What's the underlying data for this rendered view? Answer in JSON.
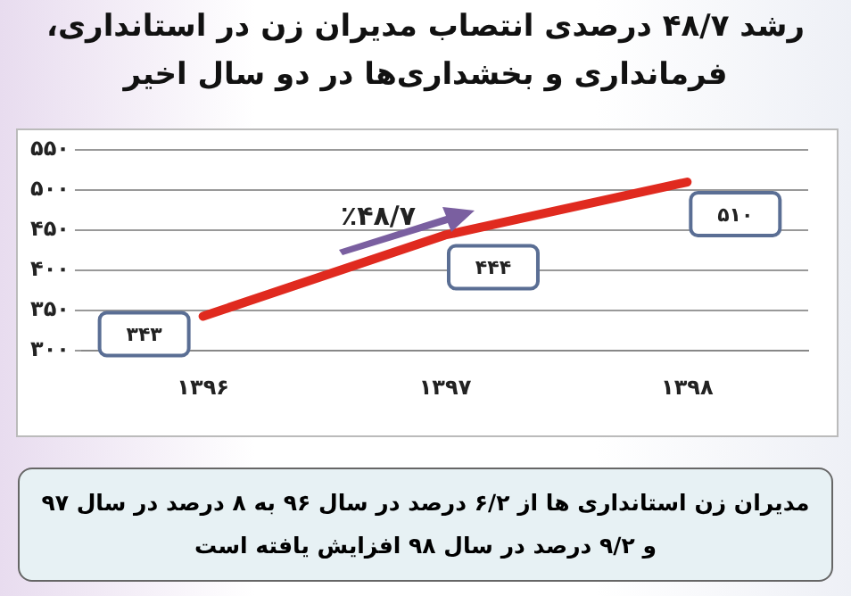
{
  "chart_data": {
    "type": "line",
    "title": "رشد ۴۸/۷ درصدی انتصاب مدیران زن در استانداری، فرمانداری و بخشداری‌ها در دو سال اخیر",
    "categories": [
      "۱۳۹۶",
      "۱۳۹۷",
      "۱۳۹۸"
    ],
    "series": [
      {
        "color": "#e02a1f",
        "values": [
          343,
          444,
          510
        ]
      }
    ],
    "value_labels": [
      "۳۴۳",
      "۴۴۴",
      "۵۱۰"
    ],
    "ylim": [
      300,
      550
    ],
    "yticks": [
      {
        "value": 300,
        "label": "۳۰۰"
      },
      {
        "value": 350,
        "label": "۳۵۰"
      },
      {
        "value": 400,
        "label": "۴۰۰"
      },
      {
        "value": 450,
        "label": "۴۵۰"
      },
      {
        "value": 500,
        "label": "۵۰۰"
      },
      {
        "value": 550,
        "label": "۵۵۰"
      }
    ],
    "grid": "y",
    "legend": false,
    "marker": "none",
    "line_style": "solid",
    "annotations": [
      "٪۴۸/۷",
      "مدیران زن استانداری ها از ۶/۲ درصد در سال ۹۶ به ۸ درصد در سال ۹۷ و ۹/۲ درصد در سال ۹۸ افزایش یافته است"
    ]
  }
}
